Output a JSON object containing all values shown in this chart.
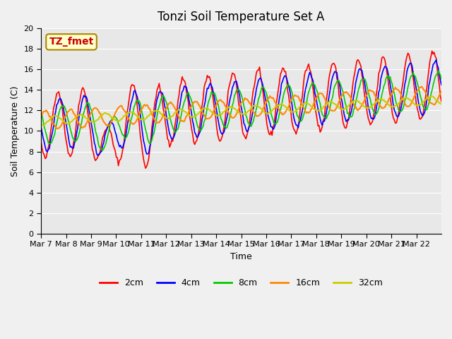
{
  "title": "Tonzi Soil Temperature Set A",
  "xlabel": "Time",
  "ylabel": "Soil Temperature (C)",
  "ylim": [
    0,
    20
  ],
  "yticks": [
    0,
    2,
    4,
    6,
    8,
    10,
    12,
    14,
    16,
    18,
    20
  ],
  "xtick_labels": [
    "Mar 7",
    "Mar 8",
    "Mar 9",
    "Mar 10",
    "Mar 11",
    "Mar 12",
    "Mar 13",
    "Mar 14",
    "Mar 15",
    "Mar 16",
    "Mar 17",
    "Mar 18",
    "Mar 19",
    "Mar 20",
    "Mar 21",
    "Mar 22"
  ],
  "annotation_text": "TZ_fmet",
  "annotation_color": "#cc0000",
  "annotation_bg": "#ffffcc",
  "line_colors": {
    "2cm": "#ff0000",
    "4cm": "#0000ff",
    "8cm": "#00cc00",
    "16cm": "#ff8800",
    "32cm": "#cccc00"
  },
  "legend_labels": [
    "2cm",
    "4cm",
    "8cm",
    "16cm",
    "32cm"
  ],
  "background_color": "#e8e8e8",
  "grid_color": "#ffffff"
}
